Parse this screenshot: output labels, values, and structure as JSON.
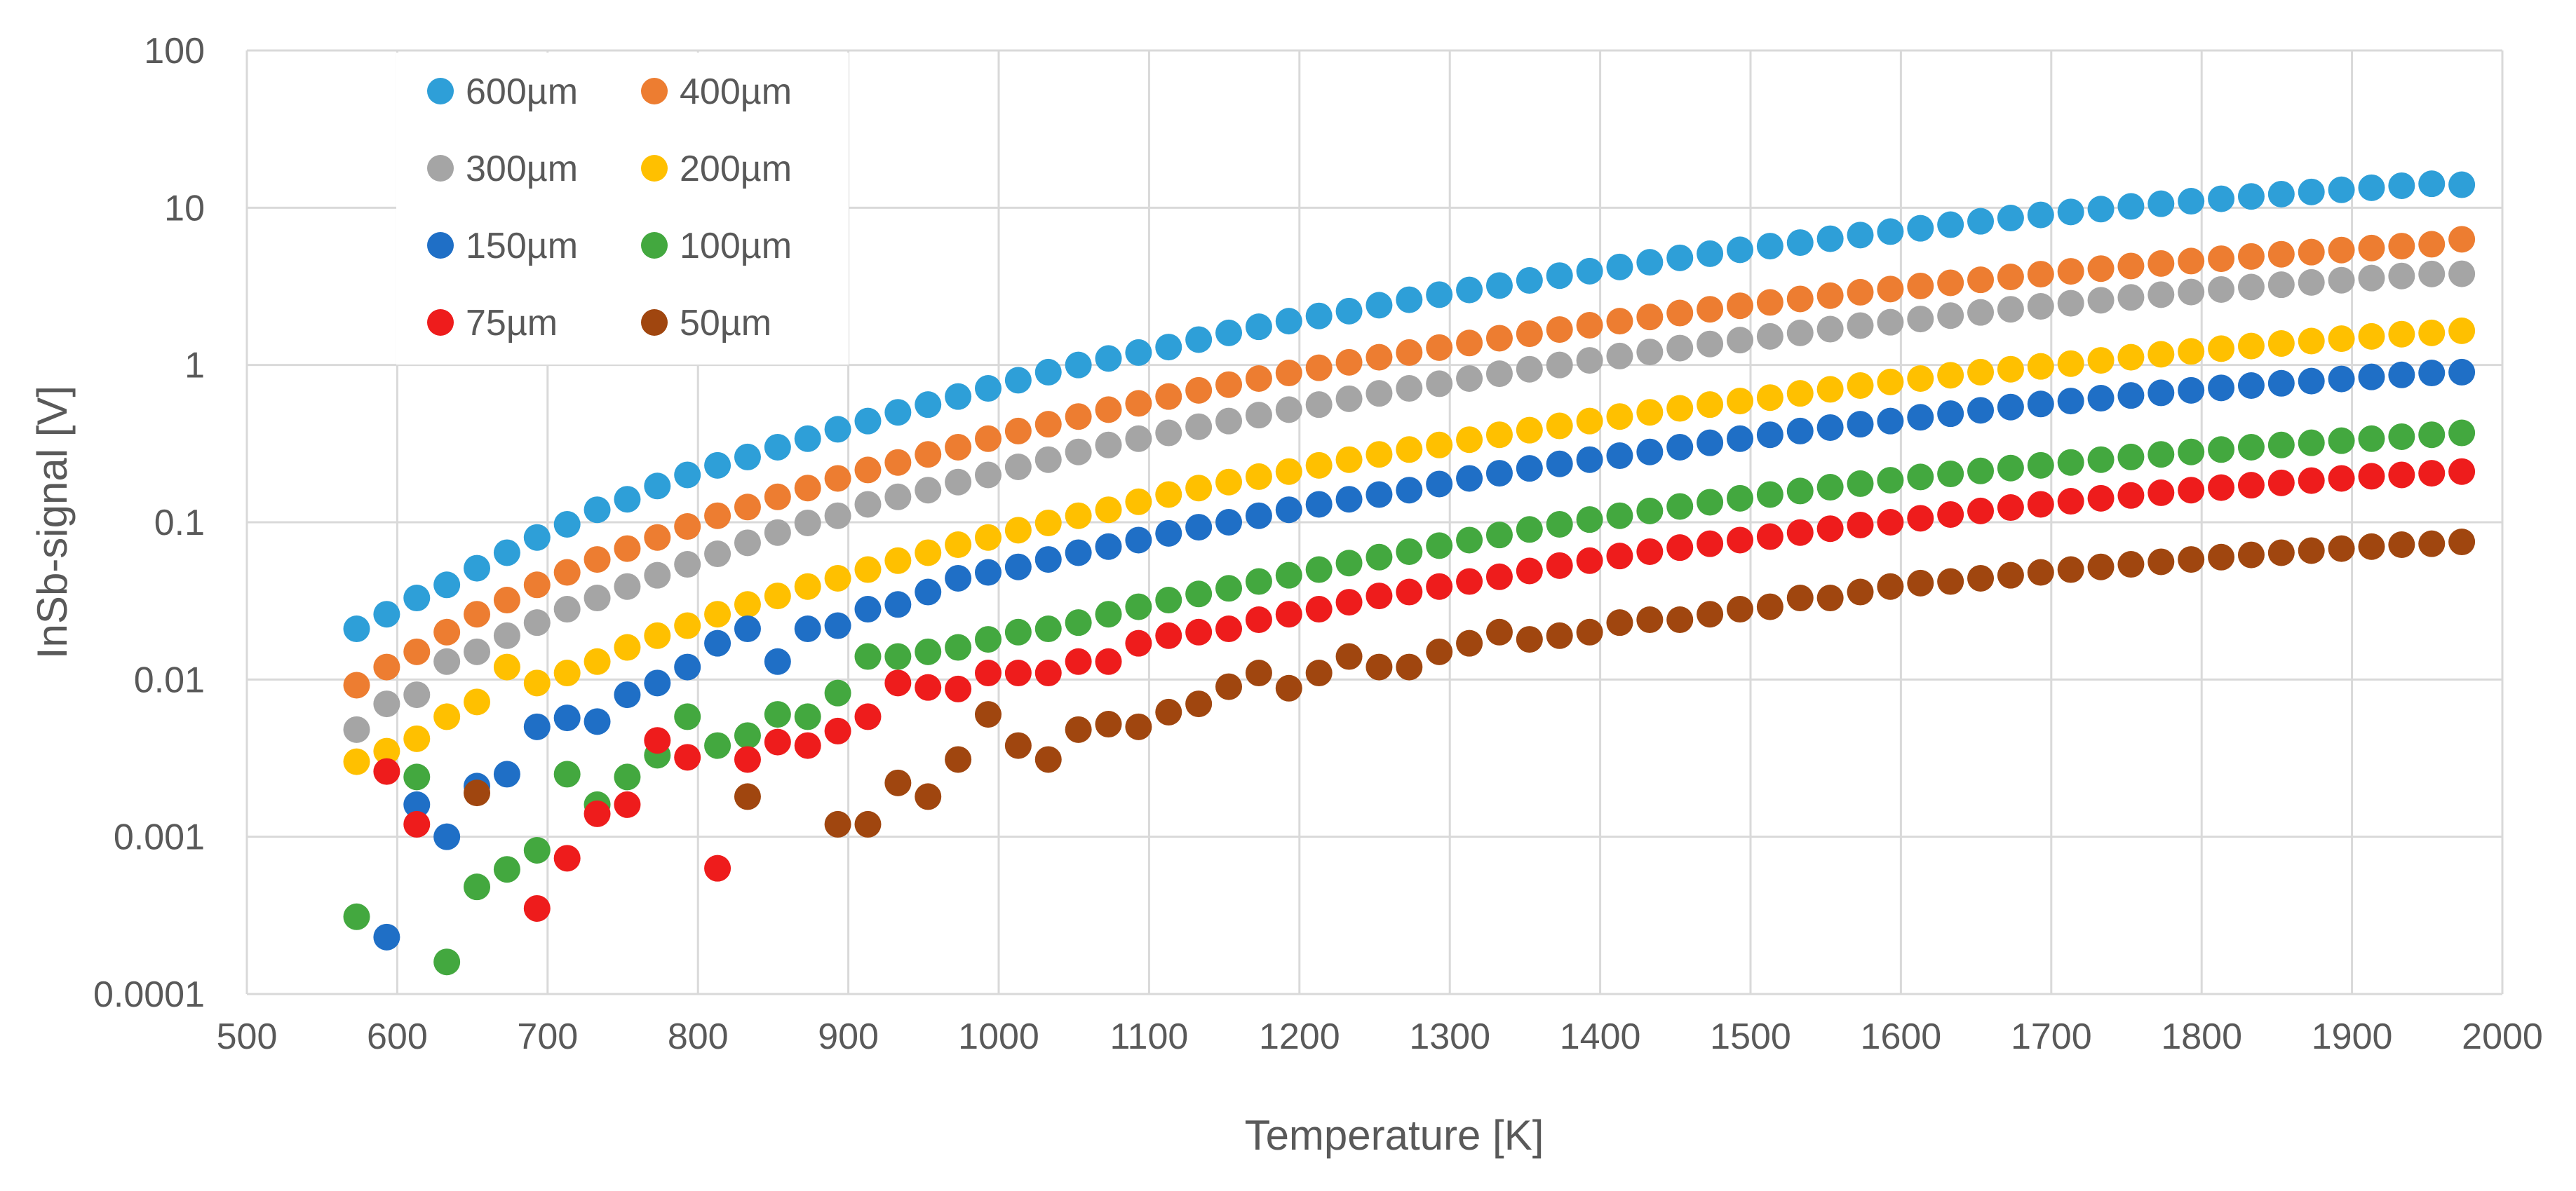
{
  "chart_data": {
    "type": "scatter",
    "title": "",
    "xlabel": "Temperature [K]",
    "ylabel": "InSb-signal [V]",
    "xlim": [
      500,
      2000
    ],
    "ylim": [
      0.0001,
      100
    ],
    "yscale": "log",
    "grid": true,
    "legend_position": "top-left",
    "x_ticks": [
      "500",
      "600",
      "700",
      "800",
      "900",
      "1000",
      "1100",
      "1200",
      "1300",
      "1400",
      "1500",
      "1600",
      "1700",
      "1800",
      "1900",
      "2000"
    ],
    "y_ticks": [
      "0.0001",
      "0.001",
      "0.01",
      "0.1",
      "1",
      "10",
      "100"
    ],
    "x": [
      573,
      593,
      613,
      633,
      653,
      673,
      693,
      713,
      733,
      753,
      773,
      793,
      813,
      833,
      853,
      873,
      893,
      913,
      933,
      953,
      973,
      993,
      1013,
      1033,
      1053,
      1073,
      1093,
      1113,
      1133,
      1153,
      1173,
      1193,
      1213,
      1233,
      1253,
      1273,
      1293,
      1313,
      1333,
      1353,
      1373,
      1393,
      1413,
      1433,
      1453,
      1473,
      1493,
      1513,
      1533,
      1553,
      1573,
      1593,
      1613,
      1633,
      1653,
      1673,
      1693,
      1713,
      1733,
      1753,
      1773,
      1793,
      1813,
      1833,
      1853,
      1873,
      1893,
      1913,
      1933,
      1953,
      1973
    ],
    "series": [
      {
        "name": "600µm",
        "color": "#2e9fd8",
        "values": [
          0.021,
          0.026,
          0.033,
          0.04,
          0.051,
          0.064,
          0.08,
          0.097,
          0.12,
          0.14,
          0.17,
          0.2,
          0.23,
          0.26,
          0.3,
          0.34,
          0.39,
          0.44,
          0.5,
          0.56,
          0.63,
          0.71,
          0.8,
          0.9,
          1.0,
          1.1,
          1.2,
          1.3,
          1.45,
          1.6,
          1.75,
          1.9,
          2.05,
          2.2,
          2.4,
          2.6,
          2.8,
          3.0,
          3.2,
          3.45,
          3.7,
          3.95,
          4.2,
          4.5,
          4.8,
          5.1,
          5.4,
          5.7,
          6.0,
          6.35,
          6.7,
          7.05,
          7.4,
          7.8,
          8.2,
          8.6,
          9.0,
          9.4,
          9.8,
          10.2,
          10.6,
          11.0,
          11.4,
          11.8,
          12.2,
          12.6,
          13.0,
          13.4,
          13.8,
          14.2,
          14.0
        ]
      },
      {
        "name": "400µm",
        "color": "#ed7d31",
        "values": [
          0.0092,
          0.012,
          0.015,
          0.02,
          0.026,
          0.032,
          0.04,
          0.048,
          0.058,
          0.068,
          0.08,
          0.094,
          0.11,
          0.125,
          0.145,
          0.165,
          0.19,
          0.215,
          0.24,
          0.27,
          0.3,
          0.34,
          0.38,
          0.42,
          0.47,
          0.52,
          0.57,
          0.63,
          0.69,
          0.75,
          0.82,
          0.89,
          0.96,
          1.04,
          1.12,
          1.2,
          1.29,
          1.38,
          1.48,
          1.58,
          1.68,
          1.79,
          1.9,
          2.02,
          2.14,
          2.26,
          2.38,
          2.5,
          2.63,
          2.76,
          2.9,
          3.04,
          3.18,
          3.33,
          3.48,
          3.63,
          3.78,
          3.94,
          4.1,
          4.26,
          4.42,
          4.58,
          4.74,
          4.9,
          5.06,
          5.22,
          5.38,
          5.54,
          5.7,
          5.86,
          6.3
        ]
      },
      {
        "name": "300µm",
        "color": "#a5a5a5",
        "values": [
          0.0048,
          0.007,
          0.008,
          0.013,
          0.015,
          0.019,
          0.023,
          0.028,
          0.033,
          0.039,
          0.046,
          0.054,
          0.063,
          0.074,
          0.086,
          0.099,
          0.11,
          0.13,
          0.145,
          0.16,
          0.18,
          0.2,
          0.225,
          0.25,
          0.28,
          0.31,
          0.34,
          0.37,
          0.405,
          0.44,
          0.48,
          0.52,
          0.56,
          0.61,
          0.66,
          0.71,
          0.76,
          0.82,
          0.88,
          0.94,
          1.0,
          1.07,
          1.14,
          1.21,
          1.28,
          1.36,
          1.44,
          1.52,
          1.6,
          1.69,
          1.78,
          1.87,
          1.96,
          2.06,
          2.16,
          2.26,
          2.36,
          2.47,
          2.58,
          2.69,
          2.8,
          2.91,
          3.02,
          3.13,
          3.24,
          3.35,
          3.46,
          3.57,
          3.68,
          3.79,
          3.8
        ]
      },
      {
        "name": "200µm",
        "color": "#ffc000",
        "values": [
          0.003,
          0.0035,
          0.0042,
          0.0058,
          0.0072,
          0.012,
          0.0095,
          0.011,
          0.013,
          0.016,
          0.019,
          0.022,
          0.026,
          0.03,
          0.034,
          0.039,
          0.044,
          0.05,
          0.057,
          0.064,
          0.072,
          0.08,
          0.089,
          0.099,
          0.11,
          0.12,
          0.135,
          0.15,
          0.165,
          0.18,
          0.195,
          0.21,
          0.23,
          0.25,
          0.27,
          0.29,
          0.31,
          0.335,
          0.36,
          0.385,
          0.41,
          0.44,
          0.47,
          0.5,
          0.53,
          0.56,
          0.59,
          0.62,
          0.66,
          0.7,
          0.74,
          0.78,
          0.82,
          0.86,
          0.9,
          0.94,
          0.98,
          1.02,
          1.07,
          1.12,
          1.17,
          1.22,
          1.27,
          1.32,
          1.37,
          1.42,
          1.47,
          1.52,
          1.57,
          1.6,
          1.65
        ]
      },
      {
        "name": "150µm",
        "color": "#1f6fc6",
        "values": [
          null,
          0.00023,
          0.0016,
          0.001,
          0.0021,
          0.0025,
          0.005,
          0.0057,
          0.0054,
          0.008,
          0.0095,
          0.012,
          0.017,
          0.021,
          0.013,
          0.021,
          0.022,
          0.028,
          0.03,
          0.036,
          0.044,
          0.048,
          0.052,
          0.058,
          0.064,
          0.07,
          0.077,
          0.085,
          0.093,
          0.1,
          0.11,
          0.12,
          0.13,
          0.14,
          0.15,
          0.16,
          0.175,
          0.19,
          0.205,
          0.22,
          0.235,
          0.25,
          0.265,
          0.28,
          0.3,
          0.32,
          0.34,
          0.36,
          0.38,
          0.4,
          0.42,
          0.44,
          0.465,
          0.49,
          0.515,
          0.54,
          0.565,
          0.59,
          0.615,
          0.64,
          0.665,
          0.69,
          0.715,
          0.74,
          0.765,
          0.79,
          0.815,
          0.84,
          0.865,
          0.89,
          0.9
        ]
      },
      {
        "name": "100µm",
        "color": "#43a83f",
        "values": [
          0.00031,
          null,
          0.0024,
          0.00016,
          0.00048,
          0.00062,
          0.00082,
          0.0025,
          0.0016,
          0.0024,
          0.0033,
          0.0058,
          0.0038,
          0.0044,
          0.006,
          0.0058,
          0.0082,
          0.014,
          0.014,
          0.015,
          0.016,
          0.018,
          0.02,
          0.021,
          0.023,
          0.026,
          0.029,
          0.032,
          0.035,
          0.038,
          0.042,
          0.046,
          0.05,
          0.055,
          0.06,
          0.065,
          0.071,
          0.077,
          0.083,
          0.09,
          0.097,
          0.104,
          0.11,
          0.118,
          0.126,
          0.134,
          0.142,
          0.15,
          0.158,
          0.167,
          0.176,
          0.185,
          0.194,
          0.203,
          0.212,
          0.221,
          0.23,
          0.24,
          0.25,
          0.26,
          0.27,
          0.28,
          0.29,
          0.3,
          0.31,
          0.32,
          0.33,
          0.34,
          0.35,
          0.36,
          0.37
        ]
      },
      {
        "name": "75µm",
        "color": "#ee1c1c",
        "values": [
          null,
          0.0026,
          0.0012,
          null,
          null,
          null,
          0.00035,
          0.00073,
          0.0014,
          0.0016,
          0.0041,
          0.0032,
          0.00063,
          0.0031,
          0.004,
          0.0038,
          0.0047,
          0.0058,
          0.0095,
          0.0089,
          0.0087,
          0.011,
          0.011,
          0.011,
          0.013,
          0.013,
          0.017,
          0.019,
          0.02,
          0.021,
          0.024,
          0.026,
          0.028,
          0.031,
          0.034,
          0.036,
          0.039,
          0.042,
          0.045,
          0.049,
          0.053,
          0.057,
          0.061,
          0.065,
          0.069,
          0.073,
          0.077,
          0.081,
          0.086,
          0.091,
          0.096,
          0.1,
          0.106,
          0.112,
          0.118,
          0.124,
          0.13,
          0.136,
          0.142,
          0.148,
          0.154,
          0.16,
          0.166,
          0.172,
          0.178,
          0.184,
          0.19,
          0.196,
          0.2,
          0.205,
          0.21
        ]
      },
      {
        "name": "50µm",
        "color": "#a0460f",
        "values": [
          null,
          null,
          null,
          null,
          0.0019,
          null,
          null,
          null,
          null,
          null,
          null,
          null,
          null,
          0.0018,
          null,
          null,
          0.0012,
          0.0012,
          0.0022,
          0.0018,
          0.0031,
          0.006,
          0.0038,
          0.0031,
          0.0048,
          0.0052,
          0.005,
          0.0062,
          0.007,
          0.009,
          0.011,
          0.0088,
          0.011,
          0.014,
          0.012,
          0.012,
          0.015,
          0.017,
          0.02,
          0.018,
          0.019,
          0.02,
          0.023,
          0.024,
          0.024,
          0.026,
          0.028,
          0.029,
          0.033,
          0.033,
          0.036,
          0.039,
          0.041,
          0.042,
          0.044,
          0.046,
          0.048,
          0.05,
          0.052,
          0.054,
          0.056,
          0.058,
          0.06,
          0.062,
          0.064,
          0.066,
          0.068,
          0.07,
          0.072,
          0.073,
          0.075
        ]
      }
    ]
  }
}
